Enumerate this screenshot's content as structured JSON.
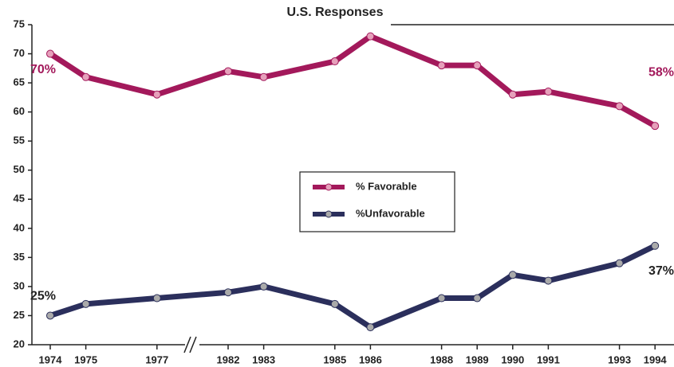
{
  "chart_data": {
    "type": "line",
    "title": "U.S. Responses",
    "categories": [
      "1974",
      "1975",
      "1977",
      "1982",
      "1983",
      "1985",
      "1986",
      "1988",
      "1989",
      "1990",
      "1991",
      "1993",
      "1994"
    ],
    "series": [
      {
        "name": "% Favorable",
        "color": "#a3195b",
        "values": [
          70,
          66,
          63,
          67,
          66,
          68.7,
          73,
          68,
          68,
          63,
          63.5,
          61,
          57.6
        ],
        "value_labels": [
          "70%",
          null,
          null,
          null,
          null,
          null,
          null,
          null,
          null,
          null,
          null,
          null,
          "58%"
        ]
      },
      {
        "name": "%Unfavorable",
        "color": "#2b2f5c",
        "values": [
          25,
          27,
          28,
          29,
          30,
          27,
          23,
          28,
          28,
          32,
          31,
          34,
          37
        ],
        "value_labels": [
          "25%",
          null,
          null,
          null,
          null,
          null,
          null,
          null,
          null,
          null,
          null,
          null,
          "37%"
        ]
      }
    ],
    "ylim": [
      20,
      75
    ],
    "yticks": [
      20,
      25,
      30,
      35,
      40,
      45,
      50,
      55,
      60,
      65,
      70,
      75
    ]
  }
}
